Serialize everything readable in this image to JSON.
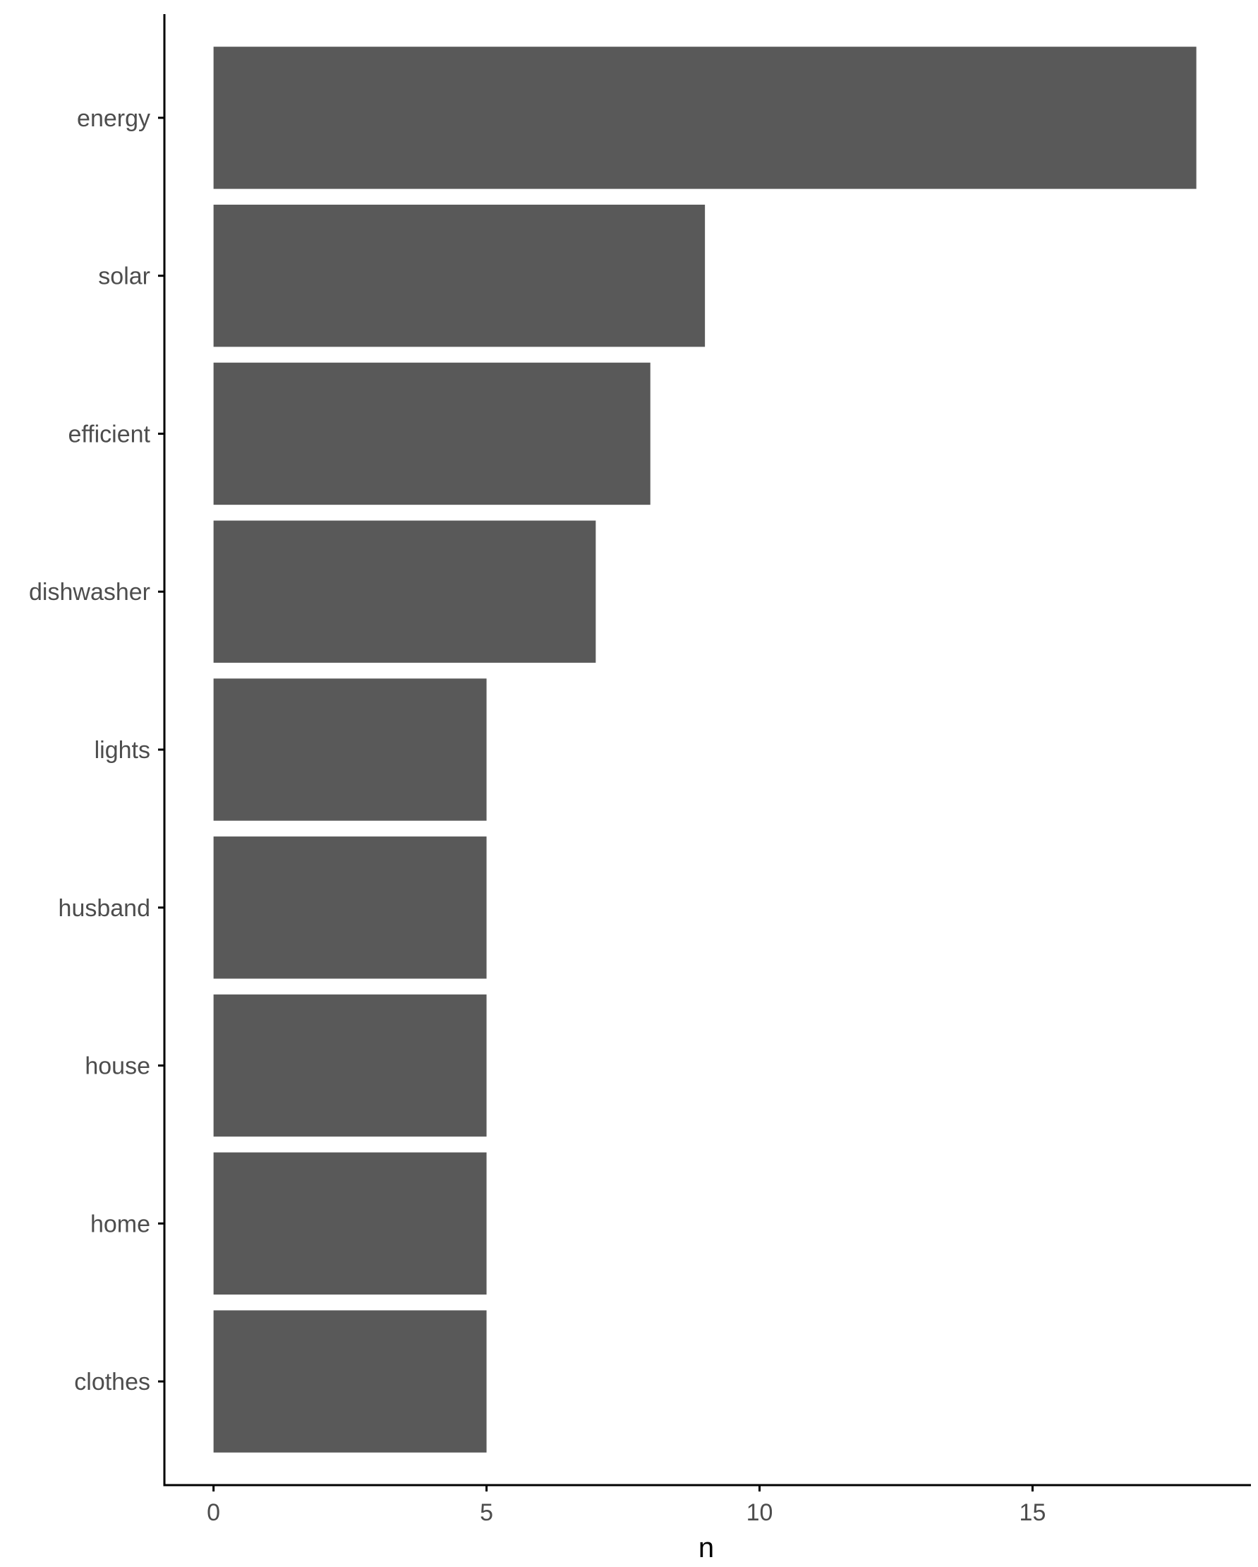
{
  "chart_data": {
    "type": "bar",
    "orientation": "horizontal",
    "categories": [
      "energy",
      "solar",
      "efficient",
      "dishwasher",
      "lights",
      "husband",
      "house",
      "home",
      "clothes"
    ],
    "values": [
      18,
      9,
      8,
      7,
      5,
      5,
      5,
      5,
      5
    ],
    "xlabel": "n",
    "ylabel": "",
    "xlim": [
      -0.9,
      19
    ],
    "x_ticks": [
      0,
      5,
      10,
      15
    ],
    "x_tick_labels": [
      "0",
      "5",
      "10",
      "15"
    ],
    "grid": false,
    "legend": "none",
    "bar_color": "#595959",
    "axis_color": "#000000",
    "tick_label_color": "#4d4d4d"
  }
}
